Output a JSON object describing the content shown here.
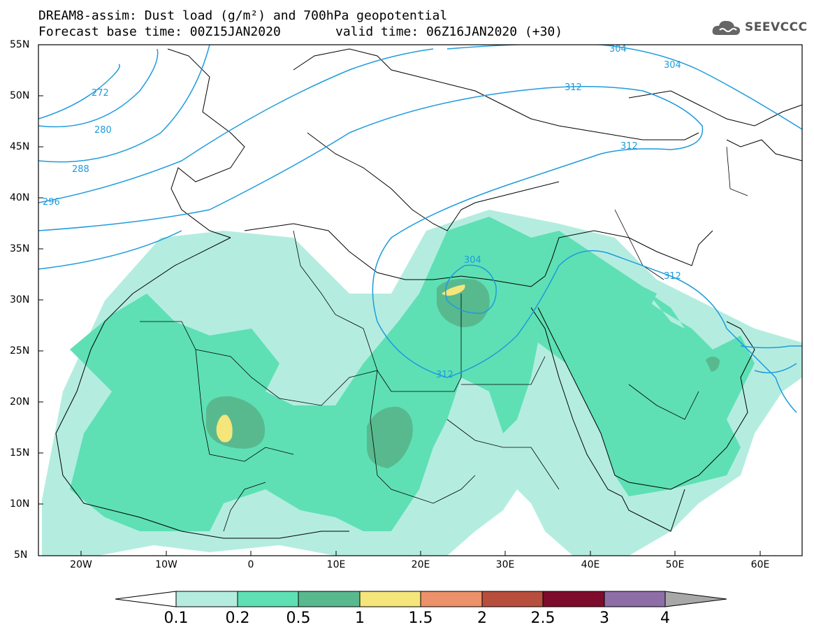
{
  "header": {
    "title_line1": "DREAM8-assim: Dust load (g/m²) and 700hPa geopotential",
    "title_line2": "Forecast base time: 00Z15JAN2020",
    "valid_time": "valid time: 06Z16JAN2020 (+30)"
  },
  "logo": {
    "text": "SEEVCCC",
    "icon": "cloud-icon"
  },
  "axes": {
    "lat_labels": [
      "55N",
      "50N",
      "45N",
      "40N",
      "35N",
      "30N",
      "25N",
      "20N",
      "15N",
      "10N",
      "5N"
    ],
    "lon_labels": [
      "20W",
      "10W",
      "0",
      "10E",
      "20E",
      "30E",
      "40E",
      "50E",
      "60E"
    ]
  },
  "contours": {
    "labels": [
      "272",
      "280",
      "288",
      "296",
      "304",
      "304",
      "312",
      "312",
      "304",
      "312",
      "312"
    ]
  },
  "colorbar": {
    "labels": [
      "0.1",
      "0.2",
      "0.5",
      "1",
      "1.5",
      "2",
      "2.5",
      "3",
      "4"
    ],
    "colors": [
      "#b4ede0",
      "#5ee0b4",
      "#58b98f",
      "#f4e67a",
      "#ec9169",
      "#b84e3c",
      "#7d0c2c",
      "#8d6ea6"
    ]
  },
  "colors": {
    "contour": "#1e9bdc",
    "dust_low": "#b4ede0",
    "dust_mid": "#5ee0b4",
    "dust_high": "#58b98f",
    "dust_peak": "#f4e67a"
  }
}
